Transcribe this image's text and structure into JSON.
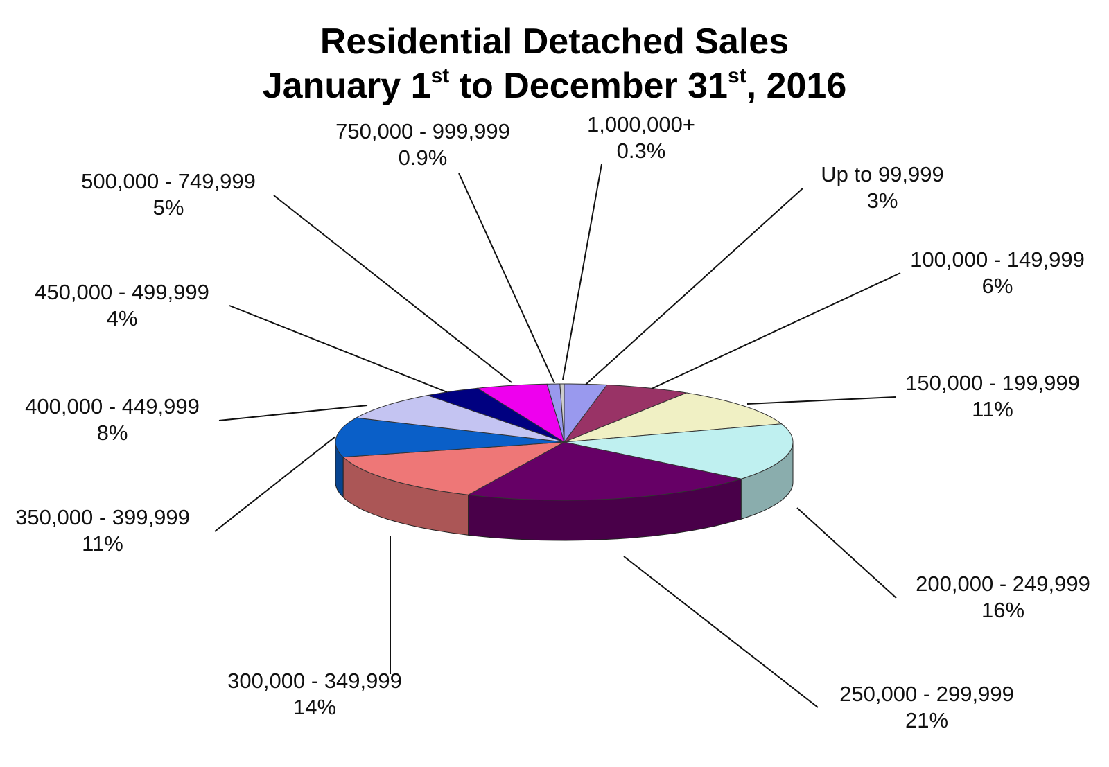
{
  "title": {
    "line1": "Residential Detached Sales",
    "line2_start": "January 1",
    "line2_sup1": "st",
    "line2_mid": " to December 31",
    "line2_sup2": "st",
    "line2_end": ", 2016"
  },
  "chart_data": {
    "type": "pie",
    "style": "3d-exploded-tilted",
    "unit": "%",
    "slices": [
      {
        "label": "Up to 99,999",
        "value_label": "3%",
        "value": 3,
        "color": "#9999ee"
      },
      {
        "label": "100,000 - 149,999",
        "value_label": "6%",
        "value": 6,
        "color": "#993366"
      },
      {
        "label": "150,000 - 199,999",
        "value_label": "11%",
        "value": 11,
        "color": "#f0f0c4"
      },
      {
        "label": "200,000 - 249,999",
        "value_label": "16%",
        "value": 16,
        "color": "#bff0f0"
      },
      {
        "label": "250,000 - 299,999",
        "value_label": "21%",
        "value": 21,
        "color": "#660066"
      },
      {
        "label": "300,000 - 349,999",
        "value_label": "14%",
        "value": 14,
        "color": "#ee7777"
      },
      {
        "label": "350,000 - 399,999",
        "value_label": "11%",
        "value": 11,
        "color": "#0a5fc8"
      },
      {
        "label": "400,000 - 449,999",
        "value_label": "8%",
        "value": 8,
        "color": "#c4c4f2"
      },
      {
        "label": "450,000 - 499,999",
        "value_label": "4%",
        "value": 4,
        "color": "#000080"
      },
      {
        "label": "500,000 - 749,999",
        "value_label": "5%",
        "value": 5,
        "color": "#ee00ee"
      },
      {
        "label": "750,000 - 999,999",
        "value_label": "0.9%",
        "value": 0.9,
        "color": "#9999ee"
      },
      {
        "label": "1,000,000+",
        "value_label": "0.3%",
        "value": 0.3,
        "color": "#cccccc"
      }
    ],
    "legend": "none",
    "labels": "outside-with-leader-lines"
  }
}
